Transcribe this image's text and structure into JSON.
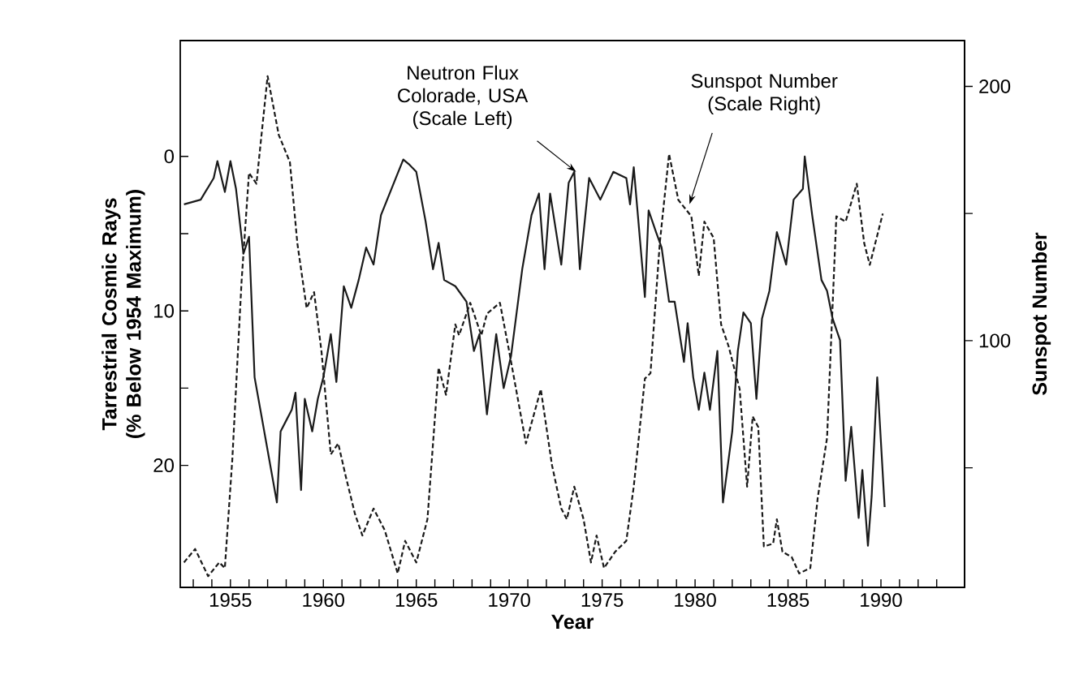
{
  "chart_data": {
    "type": "line",
    "xlabel": "Year",
    "ylabel": "Tarrestrial Cosmic Rays (% Below 1954 Maximum)",
    "y2label": "Sunspot Number",
    "annotations": [
      {
        "text": "Neutron Flux Colorade, USA (Scale Left)",
        "x": 1973.6,
        "y": 1.0
      },
      {
        "text": "Sunspot Number (Scale Right)",
        "x": 1979.7,
        "y": 3.1
      }
    ],
    "xlim": [
      1952.3,
      1994.5
    ],
    "xticks": [
      {
        "value": 1953,
        "label": null
      },
      {
        "value": 1954,
        "label": null
      },
      1955,
      {
        "value": 1956,
        "label": null
      },
      {
        "value": 1957,
        "label": null
      },
      {
        "value": 1958,
        "label": null
      },
      {
        "value": 1959,
        "label": null
      },
      1960,
      {
        "value": 1961,
        "label": null
      },
      {
        "value": 1962,
        "label": null
      },
      {
        "value": 1963,
        "label": null
      },
      {
        "value": 1964,
        "label": null
      },
      1965,
      {
        "value": 1966,
        "label": null
      },
      {
        "value": 1967,
        "label": null
      },
      {
        "value": 1968,
        "label": null
      },
      {
        "value": 1969,
        "label": null
      },
      1970,
      {
        "value": 1971,
        "label": null
      },
      {
        "value": 1972,
        "label": null
      },
      {
        "value": 1973,
        "label": null
      },
      {
        "value": 1974,
        "label": null
      },
      1975,
      {
        "value": 1976,
        "label": null
      },
      {
        "value": 1977,
        "label": null
      },
      {
        "value": 1978,
        "label": null
      },
      {
        "value": 1979,
        "label": null
      },
      1980,
      {
        "value": 1981,
        "label": null
      },
      {
        "value": 1982,
        "label": null
      },
      {
        "value": 1983,
        "label": null
      },
      {
        "value": 1984,
        "label": null
      },
      1985,
      {
        "value": 1986,
        "label": null
      },
      {
        "value": 1987,
        "label": null
      },
      {
        "value": 1988,
        "label": null
      },
      {
        "value": 1989,
        "label": null
      },
      1990,
      {
        "value": 1991,
        "label": null
      },
      {
        "value": 1992,
        "label": null
      },
      {
        "value": 1993,
        "label": null
      }
    ],
    "ylim": [
      27.9,
      -7.5
    ],
    "yticks": [
      0,
      {
        "value": 5,
        "label": null
      },
      10,
      {
        "value": 15,
        "label": null
      },
      20
    ],
    "y2lim": [
      3,
      218
    ],
    "y2ticks": [
      {
        "value": 50,
        "label": null
      },
      100,
      {
        "value": 150,
        "label": null
      },
      200
    ],
    "grid": false,
    "marker": "none",
    "series": [
      {
        "color": "#1a1a1a",
        "line_style": "solid",
        "axis": "y",
        "x": [
          1952.5,
          1953.4,
          1954.1,
          1954.3,
          1954.7,
          1955.0,
          1955.3,
          1955.7,
          1956.0,
          1956.3,
          1957.5,
          1957.7,
          1958.0,
          1958.3,
          1958.5,
          1958.8,
          1959.0,
          1959.4,
          1959.7,
          1960.0,
          1960.4,
          1960.7,
          1961.1,
          1961.5,
          1961.9,
          1962.3,
          1962.7,
          1963.1,
          1963.9,
          1964.3,
          1964.6,
          1965.0,
          1965.5,
          1965.9,
          1966.2,
          1966.5,
          1967.1,
          1967.7,
          1968.1,
          1968.4,
          1968.8,
          1969.3,
          1969.7,
          1970.1,
          1970.7,
          1971.2,
          1971.6,
          1971.9,
          1972.2,
          1972.8,
          1973.2,
          1973.5,
          1973.8,
          1974.3,
          1974.9,
          1975.6,
          1976.3,
          1976.5,
          1976.7,
          1977.3,
          1977.5,
          1977.9,
          1978.2,
          1978.6,
          1978.9,
          1979.4,
          1979.6,
          1979.9,
          1980.2,
          1980.5,
          1980.8,
          1981.2,
          1981.5,
          1982.0,
          1982.3,
          1982.6,
          1983.0,
          1983.3,
          1983.6,
          1984.0,
          1984.4,
          1984.9,
          1985.3,
          1985.8,
          1985.9,
          1986.3,
          1986.8,
          1987.1,
          1987.4,
          1987.8,
          1988.1,
          1988.4,
          1988.8,
          1989.0,
          1989.3,
          1989.5,
          1989.8,
          1990.2
        ],
        "values": [
          3.1,
          2.8,
          1.4,
          0.3,
          2.3,
          0.3,
          2.1,
          6.3,
          5.2,
          14.3,
          22.4,
          17.8,
          17.1,
          16.4,
          15.3,
          21.6,
          15.7,
          17.8,
          15.7,
          14.3,
          11.5,
          14.6,
          8.4,
          9.8,
          8.0,
          5.9,
          7.0,
          3.8,
          1.4,
          0.2,
          0.5,
          1.0,
          4.2,
          7.3,
          5.6,
          8.0,
          8.4,
          9.4,
          12.6,
          11.5,
          16.7,
          11.5,
          15.0,
          12.9,
          7.3,
          3.8,
          2.4,
          7.3,
          2.4,
          7.0,
          1.7,
          1.0,
          7.3,
          1.4,
          2.8,
          1.0,
          1.4,
          3.1,
          0.7,
          9.1,
          3.5,
          4.9,
          5.9,
          9.4,
          9.4,
          13.3,
          10.8,
          14.3,
          16.4,
          14.0,
          16.4,
          12.6,
          22.4,
          17.8,
          12.6,
          10.1,
          10.8,
          15.7,
          10.5,
          8.7,
          4.9,
          7.0,
          2.8,
          2.1,
          0.0,
          3.8,
          8.0,
          8.7,
          10.5,
          11.9,
          21.0,
          17.5,
          23.4,
          20.3,
          25.2,
          22.0,
          14.3,
          22.7
        ]
      },
      {
        "color": "#1a1a1a",
        "line_style": "dashed",
        "axis": "y2",
        "x": [
          1952.5,
          1953.1,
          1953.8,
          1954.4,
          1954.7,
          1955.1,
          1955.6,
          1956.0,
          1956.4,
          1957.0,
          1957.6,
          1958.2,
          1958.6,
          1959.1,
          1959.5,
          1959.9,
          1960.4,
          1960.8,
          1961.2,
          1961.7,
          1962.1,
          1962.7,
          1963.3,
          1964.0,
          1964.4,
          1965.0,
          1965.6,
          1966.2,
          1966.6,
          1967.1,
          1967.3,
          1967.9,
          1968.5,
          1968.8,
          1969.5,
          1970.0,
          1970.9,
          1971.7,
          1972.3,
          1972.8,
          1973.1,
          1973.5,
          1974.0,
          1974.4,
          1974.7,
          1975.1,
          1975.7,
          1976.3,
          1976.7,
          1977.3,
          1977.6,
          1978.1,
          1978.6,
          1979.1,
          1979.8,
          1980.2,
          1980.5,
          1981.0,
          1981.4,
          1981.8,
          1982.4,
          1982.8,
          1983.1,
          1983.4,
          1983.7,
          1984.2,
          1984.4,
          1984.7,
          1985.2,
          1985.6,
          1986.2,
          1986.6,
          1987.1,
          1987.6,
          1988.1,
          1988.7,
          1989.1,
          1989.4,
          1990.1
        ],
        "values": [
          12.8,
          18.1,
          7.4,
          12.8,
          10.6,
          53.2,
          123.4,
          166,
          161.7,
          204,
          180.9,
          170.2,
          138.3,
          112.8,
          119.1,
          95.7,
          55.3,
          59.6,
          46.8,
          31.9,
          23.4,
          34.0,
          25.5,
          8.5,
          21.3,
          12.8,
          29.8,
          89.4,
          78.7,
          106.4,
          102.1,
          114.9,
          102.1,
          110.6,
          114.9,
          95.7,
          59.6,
          80.9,
          51.1,
          34.0,
          29.8,
          42.6,
          29.8,
          12.8,
          23.4,
          10.6,
          17.0,
          21.3,
          42.6,
          85.1,
          87.2,
          138.3,
          173.4,
          155.3,
          148.9,
          125.5,
          146.8,
          140.4,
          106.4,
          97.9,
          80.9,
          42.6,
          70.2,
          66.0,
          19.1,
          20.2,
          29.8,
          17.0,
          14.9,
          8.5,
          10.6,
          38.3,
          61.7,
          148.9,
          146.8,
          161.7,
          138.3,
          129.8,
          150.0
        ]
      }
    ]
  }
}
